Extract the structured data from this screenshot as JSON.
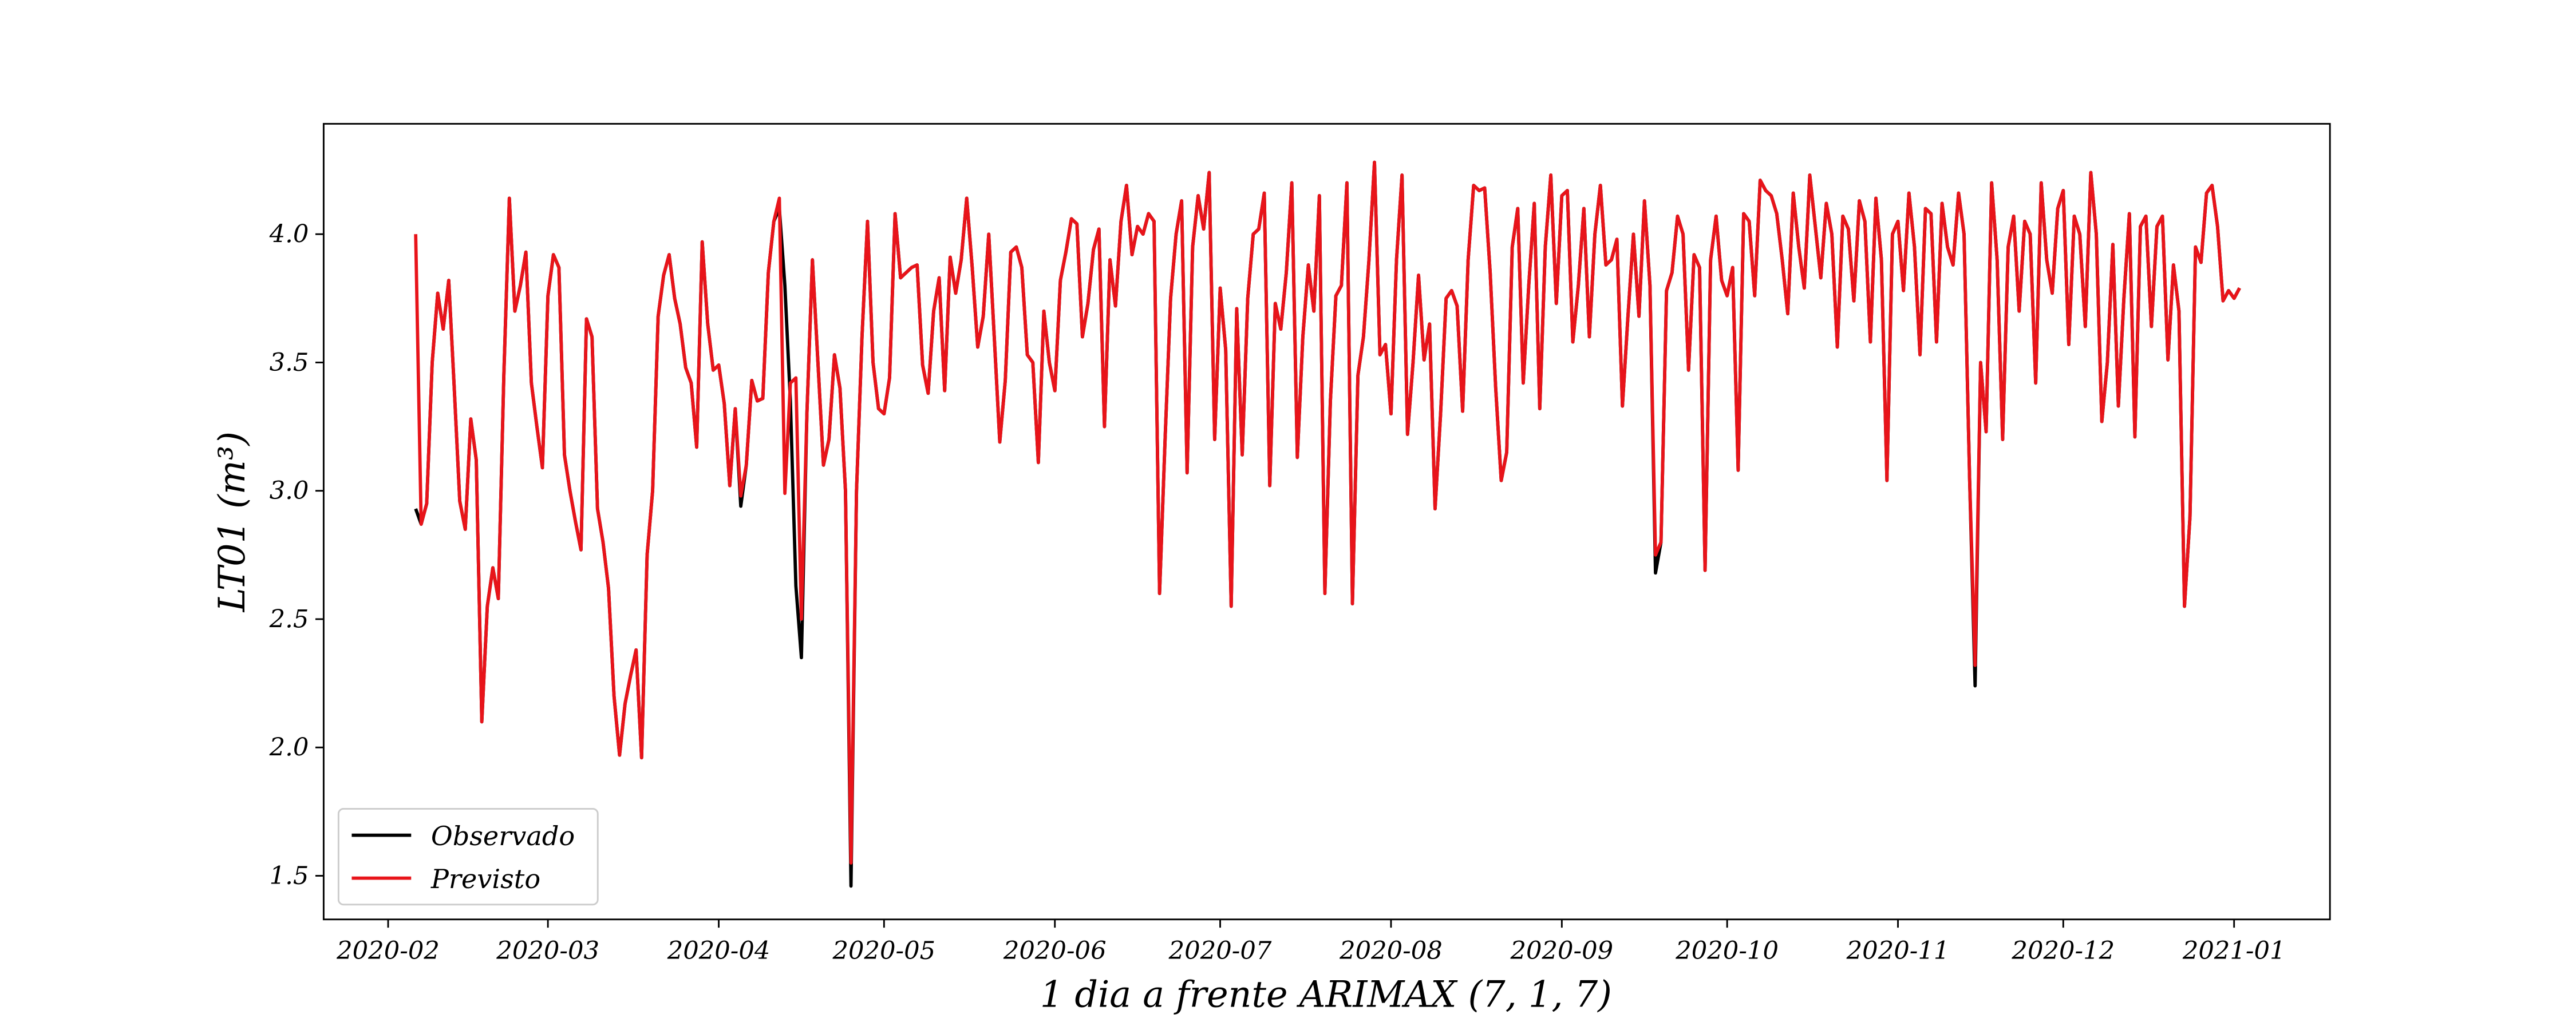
{
  "chart_data": {
    "type": "line",
    "xlabel": "1 dia a frente ARIMAX (7, 1, 7)",
    "ylabel": "LT01 (m³)",
    "legend": "lower left",
    "grid": false,
    "xlim": [
      19.3,
      383.4
    ],
    "ylim": [
      1.33,
      4.43
    ],
    "xticks": [
      {
        "value": 31,
        "label": "2020-02"
      },
      {
        "value": 60,
        "label": "2020-03"
      },
      {
        "value": 91,
        "label": "2020-04"
      },
      {
        "value": 121,
        "label": "2020-05"
      },
      {
        "value": 152,
        "label": "2020-06"
      },
      {
        "value": 182,
        "label": "2020-07"
      },
      {
        "value": 213,
        "label": "2020-08"
      },
      {
        "value": 244,
        "label": "2020-09"
      },
      {
        "value": 274,
        "label": "2020-10"
      },
      {
        "value": 305,
        "label": "2020-11"
      },
      {
        "value": 335,
        "label": "2020-12"
      },
      {
        "value": 366,
        "label": "2021-01"
      }
    ],
    "yticks": [
      {
        "value": 1.5,
        "label": "1.5"
      },
      {
        "value": 2,
        "label": "2.0"
      },
      {
        "value": 2.5,
        "label": "2.5"
      },
      {
        "value": 3,
        "label": "3.0"
      },
      {
        "value": 3.5,
        "label": "3.5"
      },
      {
        "value": 4,
        "label": "4.0"
      }
    ],
    "x": [
      36,
      37,
      38,
      39,
      40,
      41,
      42,
      43,
      44,
      45,
      46,
      47,
      48,
      49,
      50,
      51,
      52,
      53,
      54,
      55,
      56,
      57,
      58,
      59,
      60,
      61,
      62,
      63,
      64,
      65,
      66,
      67,
      68,
      69,
      70,
      71,
      72,
      73,
      74,
      75,
      76,
      77,
      78,
      79,
      80,
      81,
      82,
      83,
      84,
      85,
      86,
      87,
      88,
      89,
      90,
      91,
      92,
      93,
      94,
      95,
      96,
      97,
      98,
      99,
      100,
      101,
      102,
      103,
      104,
      105,
      106,
      107,
      108,
      109,
      110,
      111,
      112,
      113,
      114,
      115,
      116,
      117,
      118,
      119,
      120,
      121,
      122,
      123,
      124,
      125,
      126,
      127,
      128,
      129,
      130,
      131,
      132,
      133,
      134,
      135,
      136,
      137,
      138,
      139,
      140,
      141,
      142,
      143,
      144,
      145,
      146,
      147,
      148,
      149,
      150,
      151,
      152,
      153,
      154,
      155,
      156,
      157,
      158,
      159,
      160,
      161,
      162,
      163,
      164,
      165,
      166,
      167,
      168,
      169,
      170,
      171,
      172,
      173,
      174,
      175,
      176,
      177,
      178,
      179,
      180,
      181,
      182,
      183,
      184,
      185,
      186,
      187,
      188,
      189,
      190,
      191,
      192,
      193,
      194,
      195,
      196,
      197,
      198,
      199,
      200,
      201,
      202,
      203,
      204,
      205,
      206,
      207,
      208,
      209,
      210,
      211,
      212,
      213,
      214,
      215,
      216,
      217,
      218,
      219,
      220,
      221,
      222,
      223,
      224,
      225,
      226,
      227,
      228,
      229,
      230,
      231,
      232,
      233,
      234,
      235,
      236,
      237,
      238,
      239,
      240,
      241,
      242,
      243,
      244,
      245,
      246,
      247,
      248,
      249,
      250,
      251,
      252,
      253,
      254,
      255,
      256,
      257,
      258,
      259,
      260,
      261,
      262,
      263,
      264,
      265,
      266,
      267,
      268,
      269,
      270,
      271,
      272,
      273,
      274,
      275,
      276,
      277,
      278,
      279,
      280,
      281,
      282,
      283,
      284,
      285,
      286,
      287,
      288,
      289,
      290,
      291,
      292,
      293,
      294,
      295,
      296,
      297,
      298,
      299,
      300,
      301,
      302,
      303,
      304,
      305,
      306,
      307,
      308,
      309,
      310,
      311,
      312,
      313,
      314,
      315,
      316,
      317,
      318,
      319,
      320,
      321,
      322,
      323,
      324,
      325,
      326,
      327,
      328,
      329,
      330,
      331,
      332,
      333,
      334,
      335,
      336,
      337,
      338,
      339,
      340,
      341,
      342,
      343,
      344,
      345,
      346,
      347,
      348,
      349,
      350,
      351,
      352,
      353,
      354,
      355,
      356,
      357,
      358,
      359,
      360,
      361,
      362,
      363,
      364,
      365,
      366,
      367
    ],
    "series": [
      {
        "name": "Observado",
        "color": "#000000",
        "values": [
          2.93,
          2.87,
          2.95,
          3.5,
          3.77,
          3.63,
          3.82,
          3.4,
          2.96,
          2.85,
          3.28,
          3.12,
          2.1,
          2.55,
          2.7,
          2.58,
          3.45,
          4.14,
          3.7,
          3.8,
          3.93,
          3.42,
          3.25,
          3.09,
          3.76,
          3.92,
          3.87,
          3.14,
          3.0,
          2.88,
          2.77,
          3.67,
          3.6,
          2.93,
          2.8,
          2.62,
          2.2,
          1.97,
          2.17,
          2.28,
          2.38,
          1.96,
          2.75,
          3.0,
          3.68,
          3.84,
          3.92,
          3.75,
          3.65,
          3.48,
          3.42,
          3.17,
          3.97,
          3.65,
          3.47,
          3.49,
          3.34,
          3.02,
          3.32,
          2.94,
          3.1,
          3.43,
          3.35,
          3.36,
          3.85,
          4.05,
          4.1,
          3.8,
          3.35,
          2.63,
          2.35,
          3.3,
          3.9,
          3.5,
          3.1,
          3.2,
          3.53,
          3.4,
          3.0,
          1.46,
          3.0,
          3.6,
          4.05,
          3.5,
          3.32,
          3.3,
          3.44,
          4.08,
          3.83,
          3.85,
          3.87,
          3.88,
          3.49,
          3.38,
          3.7,
          3.83,
          3.39,
          3.91,
          3.77,
          3.9,
          4.14,
          3.87,
          3.56,
          3.68,
          4.0,
          3.6,
          3.19,
          3.43,
          3.93,
          3.95,
          3.87,
          3.53,
          3.5,
          3.11,
          3.7,
          3.5,
          3.39,
          3.82,
          3.93,
          4.06,
          4.04,
          3.6,
          3.73,
          3.94,
          4.02,
          3.25,
          3.9,
          3.72,
          4.05,
          4.19,
          3.92,
          4.03,
          4.0,
          4.08,
          4.05,
          2.6,
          3.2,
          3.75,
          4.0,
          4.13,
          3.07,
          3.95,
          4.15,
          4.02,
          4.24,
          3.2,
          3.79,
          3.55,
          2.55,
          3.71,
          3.14,
          3.75,
          4.0,
          4.02,
          4.16,
          3.02,
          3.73,
          3.63,
          3.85,
          4.2,
          3.13,
          3.6,
          3.88,
          3.7,
          4.15,
          2.6,
          3.35,
          3.76,
          3.8,
          4.2,
          2.56,
          3.45,
          3.6,
          3.9,
          4.28,
          3.53,
          3.57,
          3.3,
          3.9,
          4.23,
          3.22,
          3.5,
          3.84,
          3.51,
          3.65,
          2.93,
          3.3,
          3.75,
          3.78,
          3.72,
          3.31,
          3.9,
          4.19,
          4.17,
          4.18,
          3.85,
          3.4,
          3.04,
          3.15,
          3.95,
          4.1,
          3.42,
          3.8,
          4.12,
          3.32,
          3.95,
          4.23,
          3.73,
          4.15,
          4.17,
          3.58,
          3.8,
          4.1,
          3.6,
          4.0,
          4.19,
          3.88,
          3.9,
          3.98,
          3.33,
          3.68,
          4.0,
          3.68,
          4.13,
          3.8,
          2.68,
          2.8,
          3.78,
          3.85,
          4.07,
          4.0,
          3.47,
          3.92,
          3.87,
          2.69,
          3.9,
          4.07,
          3.82,
          3.76,
          3.87,
          3.08,
          4.08,
          4.05,
          3.76,
          4.21,
          4.17,
          4.15,
          4.08,
          3.9,
          3.69,
          4.16,
          3.95,
          3.79,
          4.23,
          4.03,
          3.83,
          4.12,
          4.0,
          3.56,
          4.07,
          4.02,
          3.74,
          4.13,
          4.05,
          3.58,
          4.14,
          3.9,
          3.04,
          4.0,
          4.05,
          3.78,
          4.16,
          3.95,
          3.53,
          4.1,
          4.08,
          3.58,
          4.12,
          3.95,
          3.88,
          4.16,
          4.0,
          3.05,
          2.24,
          3.5,
          3.23,
          4.2,
          3.9,
          3.2,
          3.95,
          4.07,
          3.7,
          4.05,
          4.0,
          3.42,
          4.2,
          3.9,
          3.77,
          4.1,
          4.17,
          3.57,
          4.07,
          4.0,
          3.64,
          4.24,
          4.0,
          3.27,
          3.5,
          3.96,
          3.33,
          3.75,
          4.08,
          3.21,
          4.03,
          4.07,
          3.64,
          4.03,
          4.07,
          3.51,
          3.88,
          3.7,
          2.55,
          2.9,
          3.95,
          3.89,
          4.16,
          4.19,
          4.03,
          3.74,
          3.78,
          3.75,
          3.79
        ]
      },
      {
        "name": "Previsto",
        "color": "#e8141a",
        "values": [
          4.0,
          2.87,
          2.95,
          3.5,
          3.77,
          3.63,
          3.82,
          3.4,
          2.96,
          2.85,
          3.28,
          3.12,
          2.1,
          2.55,
          2.7,
          2.58,
          3.45,
          4.14,
          3.7,
          3.8,
          3.93,
          3.42,
          3.25,
          3.09,
          3.76,
          3.92,
          3.87,
          3.14,
          3.0,
          2.88,
          2.77,
          3.67,
          3.6,
          2.93,
          2.8,
          2.62,
          2.2,
          1.97,
          2.17,
          2.28,
          2.38,
          1.96,
          2.75,
          3.0,
          3.68,
          3.84,
          3.92,
          3.75,
          3.65,
          3.48,
          3.42,
          3.17,
          3.97,
          3.65,
          3.47,
          3.49,
          3.34,
          3.02,
          3.32,
          2.98,
          3.1,
          3.43,
          3.35,
          3.36,
          3.85,
          4.05,
          4.14,
          2.99,
          3.42,
          3.44,
          2.5,
          3.3,
          3.9,
          3.5,
          3.1,
          3.2,
          3.53,
          3.4,
          3.0,
          1.55,
          3.0,
          3.6,
          4.05,
          3.5,
          3.32,
          3.3,
          3.44,
          4.08,
          3.83,
          3.85,
          3.87,
          3.88,
          3.49,
          3.38,
          3.7,
          3.83,
          3.39,
          3.91,
          3.77,
          3.9,
          4.14,
          3.87,
          3.56,
          3.68,
          4.0,
          3.6,
          3.19,
          3.43,
          3.93,
          3.95,
          3.87,
          3.53,
          3.5,
          3.11,
          3.7,
          3.5,
          3.39,
          3.82,
          3.93,
          4.06,
          4.04,
          3.6,
          3.73,
          3.94,
          4.02,
          3.25,
          3.9,
          3.72,
          4.05,
          4.19,
          3.92,
          4.03,
          4.0,
          4.08,
          4.05,
          2.6,
          3.2,
          3.75,
          4.0,
          4.13,
          3.07,
          3.95,
          4.15,
          4.02,
          4.24,
          3.2,
          3.79,
          3.55,
          2.55,
          3.71,
          3.14,
          3.75,
          4.0,
          4.02,
          4.16,
          3.02,
          3.73,
          3.63,
          3.85,
          4.2,
          3.13,
          3.6,
          3.88,
          3.7,
          4.15,
          2.6,
          3.35,
          3.76,
          3.8,
          4.2,
          2.56,
          3.45,
          3.6,
          3.9,
          4.28,
          3.53,
          3.57,
          3.3,
          3.9,
          4.23,
          3.22,
          3.5,
          3.84,
          3.51,
          3.65,
          2.93,
          3.3,
          3.75,
          3.78,
          3.72,
          3.31,
          3.9,
          4.19,
          4.17,
          4.18,
          3.85,
          3.4,
          3.04,
          3.15,
          3.95,
          4.1,
          3.42,
          3.8,
          4.12,
          3.32,
          3.95,
          4.23,
          3.73,
          4.15,
          4.17,
          3.58,
          3.8,
          4.1,
          3.6,
          4.0,
          4.19,
          3.88,
          3.9,
          3.98,
          3.33,
          3.68,
          4.0,
          3.68,
          4.13,
          3.8,
          2.75,
          2.8,
          3.78,
          3.85,
          4.07,
          4.0,
          3.47,
          3.92,
          3.87,
          2.69,
          3.9,
          4.07,
          3.82,
          3.76,
          3.87,
          3.08,
          4.08,
          4.05,
          3.76,
          4.21,
          4.17,
          4.15,
          4.08,
          3.9,
          3.69,
          4.16,
          3.95,
          3.79,
          4.23,
          4.03,
          3.83,
          4.12,
          4.0,
          3.56,
          4.07,
          4.02,
          3.74,
          4.13,
          4.05,
          3.58,
          4.14,
          3.9,
          3.04,
          4.0,
          4.05,
          3.78,
          4.16,
          3.95,
          3.53,
          4.1,
          4.08,
          3.58,
          4.12,
          3.95,
          3.88,
          4.16,
          4.0,
          3.05,
          2.32,
          3.5,
          3.23,
          4.2,
          3.9,
          3.2,
          3.95,
          4.07,
          3.7,
          4.05,
          4.0,
          3.42,
          4.2,
          3.9,
          3.77,
          4.1,
          4.17,
          3.57,
          4.07,
          4.0,
          3.64,
          4.24,
          4.0,
          3.27,
          3.5,
          3.96,
          3.33,
          3.75,
          4.08,
          3.21,
          4.03,
          4.07,
          3.64,
          4.03,
          4.07,
          3.51,
          3.88,
          3.7,
          2.55,
          2.9,
          3.95,
          3.89,
          4.16,
          4.19,
          4.03,
          3.74,
          3.78,
          3.75,
          3.79
        ]
      }
    ]
  }
}
